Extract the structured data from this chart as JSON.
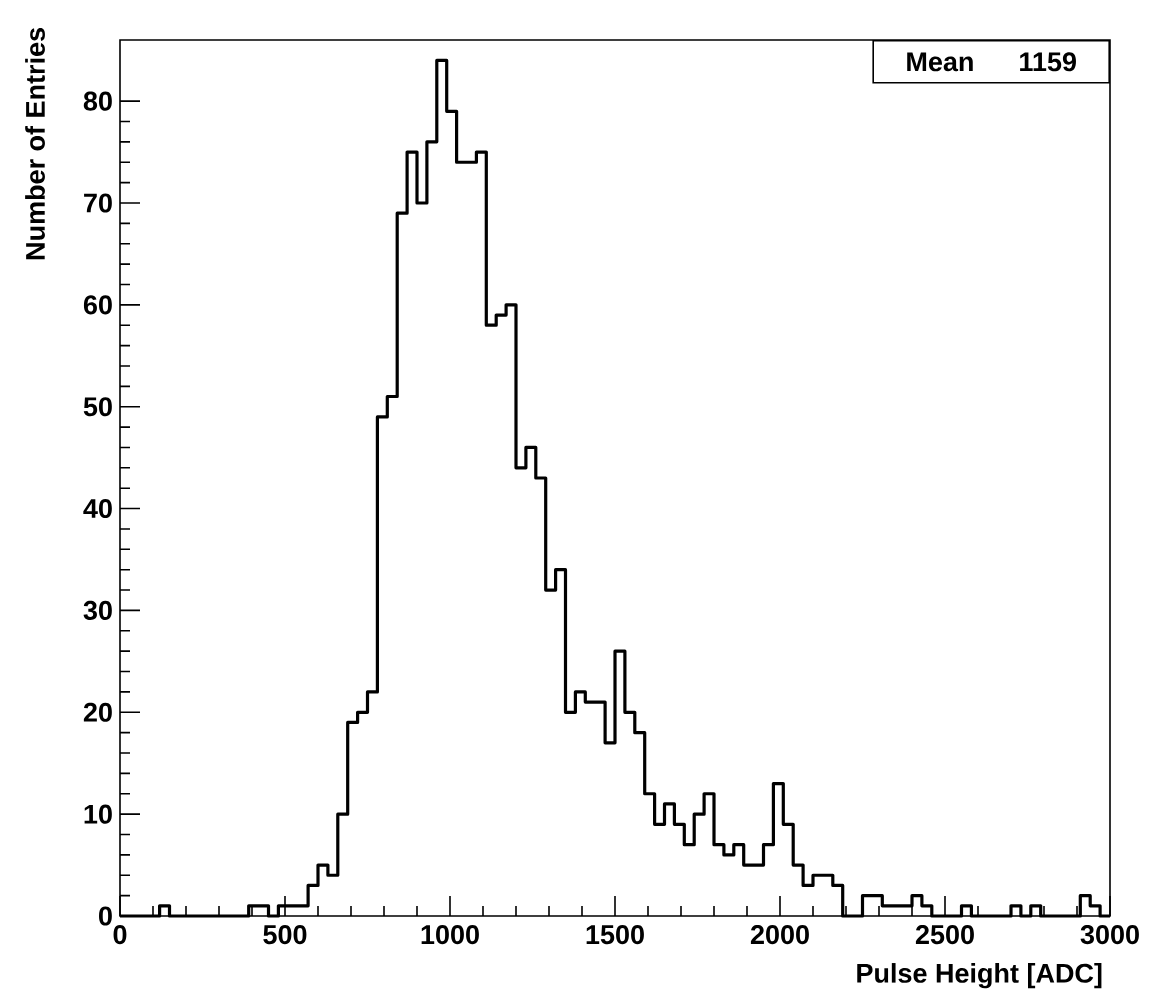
{
  "chart_data": {
    "type": "histogram",
    "xlabel": "Pulse Height [ADC]",
    "ylabel": "Number of Entries",
    "annotations": [
      "Mean",
      "1159"
    ],
    "color": "#000000",
    "xlim": [
      0,
      3000
    ],
    "ylim": [
      0,
      86
    ],
    "xticks": [
      0,
      500,
      1000,
      1500,
      2000,
      2500,
      3000
    ],
    "yticks": [
      0,
      10,
      20,
      30,
      40,
      50,
      60,
      70,
      80
    ],
    "bins": [
      0,
      30,
      60,
      90,
      120,
      150,
      180,
      210,
      240,
      270,
      300,
      330,
      360,
      390,
      420,
      450,
      480,
      510,
      540,
      570,
      600,
      630,
      660,
      690,
      720,
      750,
      780,
      810,
      840,
      870,
      900,
      930,
      960,
      990,
      1020,
      1050,
      1080,
      1110,
      1140,
      1170,
      1200,
      1230,
      1260,
      1290,
      1320,
      1350,
      1380,
      1410,
      1440,
      1470,
      1500,
      1530,
      1560,
      1590,
      1620,
      1650,
      1680,
      1710,
      1740,
      1770,
      1800,
      1830,
      1860,
      1890,
      1920,
      1950,
      1980,
      2010,
      2040,
      2070,
      2100,
      2130,
      2160,
      2190,
      2220,
      2250,
      2280,
      2310,
      2340,
      2370,
      2400,
      2430,
      2460,
      2490,
      2520,
      2550,
      2580,
      2610,
      2640,
      2670,
      2700,
      2730,
      2760,
      2790,
      2820,
      2850,
      2880,
      2910,
      2940,
      2970,
      3000
    ],
    "values": [
      0,
      0,
      0,
      0,
      1,
      0,
      0,
      0,
      0,
      0,
      0,
      0,
      0,
      1,
      1,
      0,
      1,
      1,
      1,
      3,
      5,
      4,
      10,
      19,
      20,
      22,
      49,
      51,
      69,
      75,
      70,
      76,
      84,
      79,
      74,
      74,
      75,
      58,
      59,
      60,
      44,
      46,
      43,
      32,
      34,
      20,
      22,
      21,
      21,
      17,
      26,
      20,
      18,
      12,
      9,
      11,
      9,
      7,
      10,
      12,
      7,
      6,
      7,
      5,
      5,
      7,
      13,
      9,
      5,
      3,
      4,
      4,
      3,
      0,
      0,
      2,
      2,
      1,
      1,
      1,
      2,
      1,
      0,
      0,
      0,
      1,
      0,
      0,
      0,
      0,
      1,
      0,
      1,
      0,
      0,
      0,
      0,
      2,
      1,
      0
    ]
  }
}
